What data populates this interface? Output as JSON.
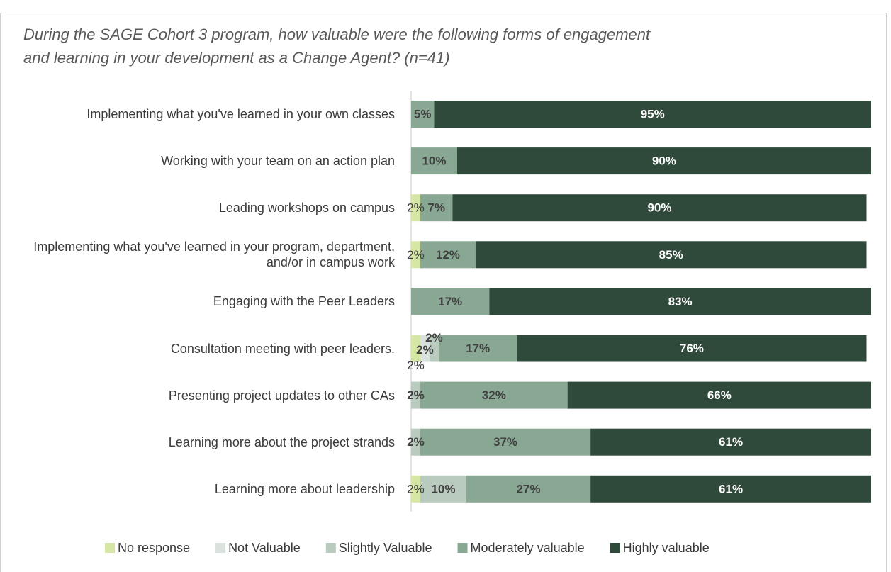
{
  "chart_data": {
    "type": "bar",
    "orientation": "horizontal",
    "stacked": true,
    "title": "During the SAGE Cohort 3 program, how valuable were the following forms of engagement and learning in your development as a Change Agent? (n=41)",
    "categories": [
      "Implementing what you've learned in your own classes",
      "Working with your team on an action plan",
      "Leading workshops on campus",
      "Implementing what you've learned in your program, department, and/or in campus work",
      "Engaging with the Peer Leaders",
      "Consultation meeting with peer leaders.",
      "Presenting project updates to other CAs",
      "Learning more about the project strands",
      "Learning more about leadership"
    ],
    "xlim": [
      0,
      100
    ],
    "legend": "bottom",
    "series": [
      {
        "name": "No response",
        "color": "#d6e6a5",
        "values": [
          null,
          null,
          2,
          2,
          null,
          2,
          null,
          null,
          2
        ],
        "value_labels": [
          null,
          null,
          "2%",
          "2%",
          null,
          "2%",
          null,
          null,
          "2%"
        ]
      },
      {
        "name": "Not Valuable",
        "color": "#d9e2dc",
        "values": [
          null,
          null,
          null,
          null,
          null,
          2,
          null,
          null,
          null
        ],
        "value_labels": [
          null,
          null,
          null,
          null,
          null,
          "2%",
          null,
          null,
          null
        ]
      },
      {
        "name": "Slightly Valuable",
        "color": "#b8cbbe",
        "values": [
          null,
          null,
          null,
          null,
          null,
          2,
          2,
          2,
          10
        ],
        "value_labels": [
          null,
          null,
          null,
          null,
          null,
          "2%",
          "2%",
          "2%",
          "10%"
        ]
      },
      {
        "name": "Moderately valuable",
        "color": "#88a893",
        "values": [
          5,
          10,
          7,
          12,
          17,
          17,
          32,
          37,
          27
        ],
        "value_labels": [
          "5%",
          "10%",
          "7%",
          "12%",
          "17%",
          "17%",
          "32%",
          "37%",
          "27%"
        ]
      },
      {
        "name": "Highly valuable",
        "color": "#2f4a3b",
        "values": [
          95,
          90,
          90,
          85,
          83,
          76,
          66,
          61,
          61
        ],
        "value_labels": [
          "95%",
          "90%",
          "90%",
          "85%",
          "83%",
          "76%",
          "66%",
          "61%",
          "61%"
        ]
      }
    ]
  }
}
